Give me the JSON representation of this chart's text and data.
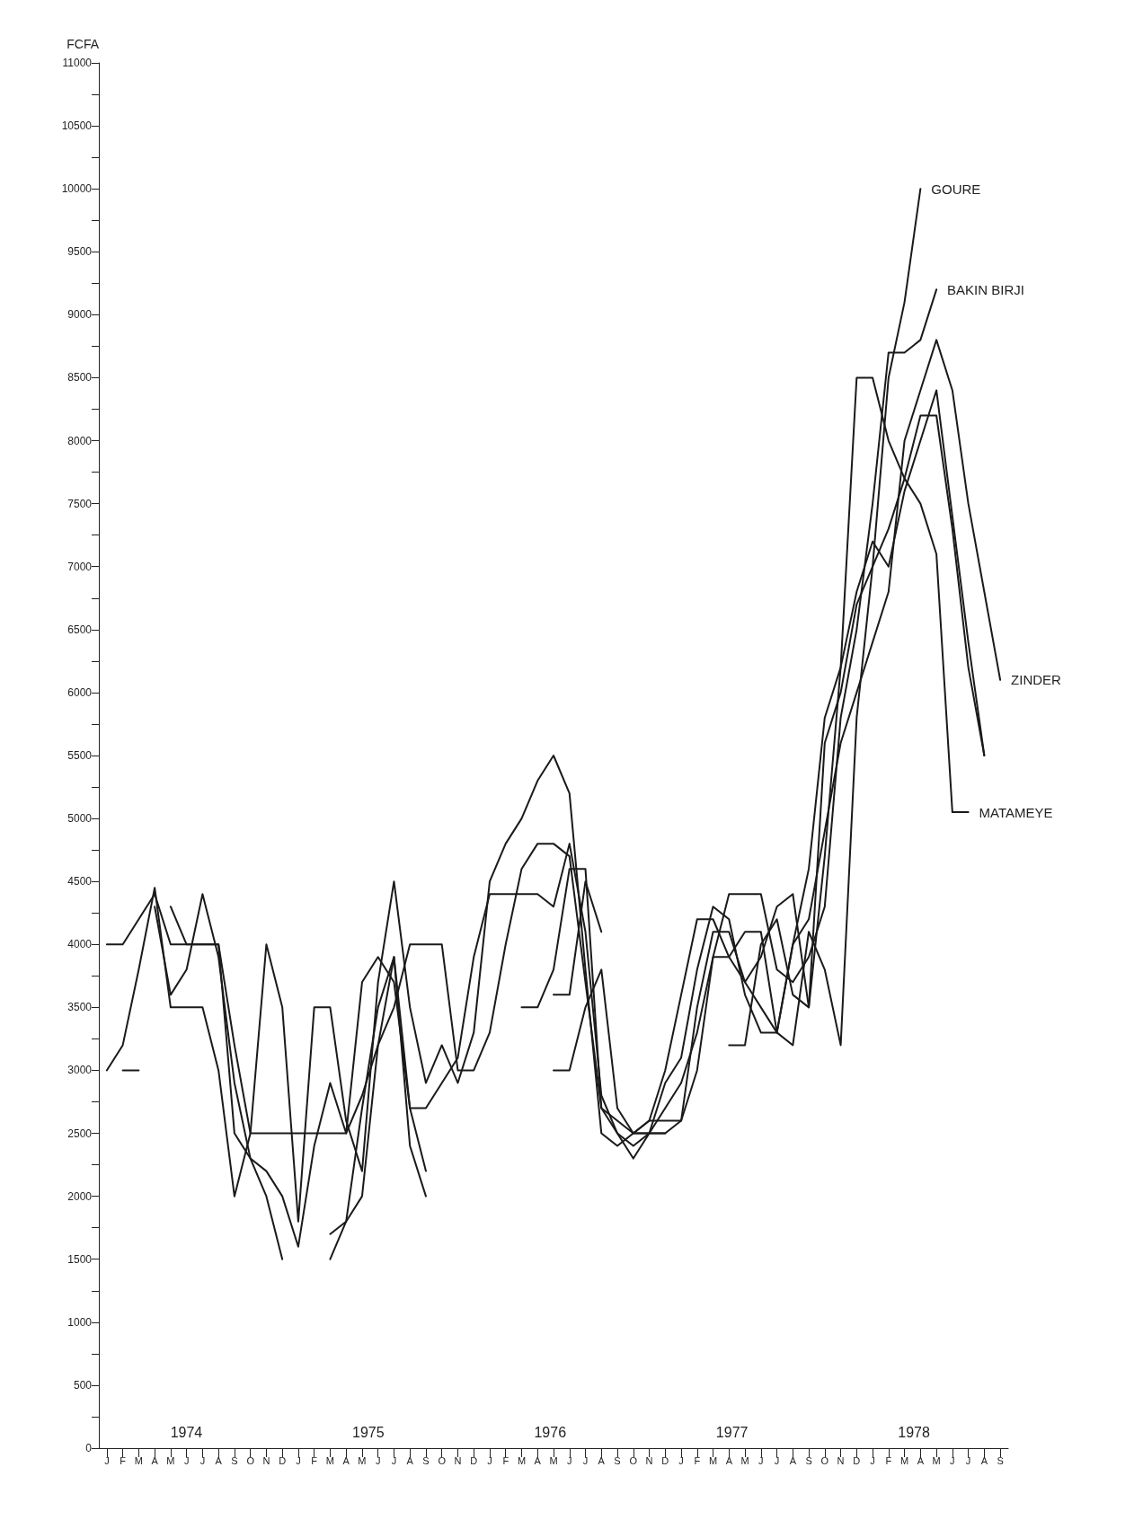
{
  "chart_data": {
    "type": "line",
    "ylabel": "FCFA",
    "categories": [
      "J",
      "F",
      "M",
      "A",
      "M",
      "J",
      "J",
      "A",
      "S",
      "O",
      "N",
      "D",
      "J",
      "F",
      "M",
      "A",
      "M",
      "J",
      "J",
      "A",
      "S",
      "O",
      "N",
      "D",
      "J",
      "F",
      "M",
      "A",
      "M",
      "J",
      "J",
      "A",
      "S",
      "O",
      "N",
      "D",
      "J",
      "F",
      "M",
      "A",
      "M",
      "J",
      "J",
      "A",
      "S",
      "O",
      "N",
      "D",
      "J",
      "F",
      "M",
      "A",
      "M",
      "J",
      "J",
      "A",
      "S"
    ],
    "annotations": [
      "1974",
      "1975",
      "1976",
      "1977",
      "1978"
    ],
    "series": [
      {
        "name": "GOURE",
        "color": "#1a1a1a",
        "values": [
          3000,
          3200,
          3800,
          4450,
          3500,
          3500,
          3500,
          3000,
          2000,
          2500,
          4000,
          3500,
          1800,
          3500,
          3500,
          2600,
          2200,
          3700,
          4500,
          3500,
          2900,
          3200,
          2900,
          3300,
          4500,
          4800,
          5000,
          5300,
          5500,
          5200,
          3800,
          2500,
          2400,
          2500,
          2600,
          3000,
          3600,
          4200,
          4200,
          3900,
          3700,
          3500,
          3300,
          3200,
          4100,
          3800,
          3200,
          5800,
          7000,
          8500,
          9100,
          10000,
          null,
          null,
          null,
          null,
          null
        ]
      },
      {
        "name": "BAKIN BIRJI",
        "color": "#1a1a1a",
        "values": [
          4000,
          4000,
          4200,
          4400,
          4000,
          4000,
          4000,
          4000,
          3200,
          2500,
          2500,
          2500,
          2500,
          2500,
          2500,
          2500,
          2800,
          3200,
          3500,
          4000,
          4000,
          4000,
          3000,
          3000,
          3300,
          4000,
          4600,
          4800,
          4800,
          4700,
          3700,
          2700,
          2500,
          2400,
          2500,
          2700,
          2900,
          3300,
          3900,
          4400,
          4400,
          4400,
          3800,
          3700,
          3900,
          4300,
          5800,
          6500,
          7500,
          8700,
          8700,
          8800,
          9200,
          null,
          null,
          null,
          null
        ]
      },
      {
        "name": "ZINDER",
        "color": "#1a1a1a",
        "values": [
          null,
          null,
          null,
          4300,
          3600,
          3800,
          4400,
          3900,
          2900,
          2300,
          2200,
          2000,
          1600,
          2400,
          2900,
          2500,
          3700,
          3900,
          3700,
          2700,
          2700,
          2900,
          3100,
          3900,
          4400,
          4400,
          4400,
          4400,
          4300,
          4800,
          4100,
          2800,
          2500,
          2300,
          2500,
          2900,
          3100,
          3800,
          4300,
          4200,
          3600,
          3300,
          3300,
          4000,
          4200,
          4900,
          5600,
          6000,
          6400,
          6800,
          8000,
          8400,
          8800,
          8400,
          7500,
          6800,
          6100
        ]
      },
      {
        "color": "#1a1a1a",
        "values": [
          null,
          3000,
          3000,
          null,
          4300,
          4000,
          4000,
          4000,
          2500,
          2300,
          2000,
          1500,
          null,
          null,
          1700,
          1800,
          2000,
          3200,
          3900,
          2700,
          2200,
          null,
          null,
          null,
          null,
          null,
          null,
          null,
          3600,
          3600,
          4500,
          4100,
          null,
          2500,
          2600,
          2600,
          2600,
          3500,
          4100,
          4100,
          3700,
          3900,
          4300,
          4400,
          3500,
          4700,
          6200,
          6800,
          7200,
          7000,
          7600,
          8000,
          8400,
          7400,
          6400,
          5500,
          null
        ]
      },
      {
        "color": "#1a1a1a",
        "values": [
          null,
          null,
          null,
          null,
          null,
          null,
          null,
          null,
          null,
          null,
          null,
          null,
          null,
          null,
          1500,
          1800,
          2700,
          3500,
          3900,
          2400,
          2000,
          null,
          null,
          null,
          null,
          null,
          null,
          null,
          3000,
          3000,
          3500,
          3800,
          2700,
          2500,
          2500,
          2500,
          null,
          null,
          null,
          3200,
          3200,
          4000,
          4200,
          3600,
          3500,
          5600,
          6000,
          6700,
          7000,
          7300,
          7700,
          8200,
          8200,
          7300,
          6200,
          5500,
          null
        ]
      },
      {
        "name": "MATAMEYE",
        "color": "#1a1a1a",
        "values": [
          null,
          null,
          null,
          null,
          null,
          null,
          null,
          null,
          null,
          null,
          null,
          null,
          null,
          null,
          null,
          null,
          null,
          null,
          null,
          null,
          null,
          null,
          null,
          null,
          null,
          null,
          3500,
          3500,
          3800,
          4600,
          4600,
          2700,
          2600,
          2500,
          2500,
          2500,
          2600,
          3000,
          3900,
          3900,
          4100,
          4100,
          3300,
          4000,
          4600,
          5800,
          6200,
          8500,
          8500,
          8000,
          7700,
          7500,
          7100,
          5050,
          5050,
          null,
          null
        ]
      }
    ],
    "ylim": [
      0,
      11000
    ],
    "yticks": [
      0,
      {
        "value": 250,
        "label": null
      },
      500,
      {
        "value": 750,
        "label": null
      },
      1000,
      {
        "value": 1250,
        "label": null
      },
      1500,
      {
        "value": 1750,
        "label": null
      },
      2000,
      {
        "value": 2250,
        "label": null
      },
      2500,
      {
        "value": 2750,
        "label": null
      },
      3000,
      {
        "value": 3250,
        "label": null
      },
      3500,
      {
        "value": 3750,
        "label": null
      },
      4000,
      {
        "value": 4250,
        "label": null
      },
      4500,
      {
        "value": 4750,
        "label": null
      },
      5000,
      {
        "value": 5250,
        "label": null
      },
      5500,
      {
        "value": 5750,
        "label": null
      },
      6000,
      {
        "value": 6250,
        "label": null
      },
      6500,
      {
        "value": 6750,
        "label": null
      },
      7000,
      {
        "value": 7250,
        "label": null
      },
      7500,
      {
        "value": 7750,
        "label": null
      },
      8000,
      {
        "value": 8250,
        "label": null
      },
      8500,
      {
        "value": 8750,
        "label": null
      },
      9000,
      {
        "value": 9250,
        "label": null
      },
      9500,
      {
        "value": 9750,
        "label": null
      },
      10000,
      {
        "value": 10250,
        "label": null
      },
      10500,
      {
        "value": 10750,
        "label": null
      },
      11000
    ],
    "grid": false,
    "legend": false,
    "marker": "none",
    "line_style": "solid"
  }
}
